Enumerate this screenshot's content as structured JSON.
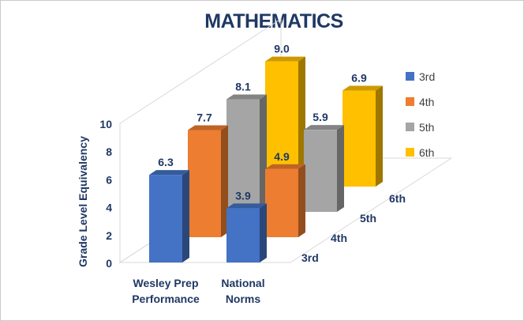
{
  "chart_data": {
    "type": "bar",
    "title": "MATHEMATICS",
    "ylabel": "Grade Level Equivalency",
    "xlabel": "",
    "ylim": [
      0,
      10
    ],
    "yticks": [
      0,
      2,
      4,
      6,
      8,
      10
    ],
    "categories": [
      "Wesley Prep Performance",
      "National Norms"
    ],
    "category_lines": [
      [
        "Wesley Prep",
        "Performance"
      ],
      [
        "National",
        "Norms"
      ]
    ],
    "depth_labels": [
      "3rd",
      "4th",
      "5th",
      "6th"
    ],
    "series": [
      {
        "name": "3rd",
        "values": [
          6.3,
          3.9
        ],
        "color": "#4472c4"
      },
      {
        "name": "4th",
        "values": [
          7.7,
          4.9
        ],
        "color": "#ed7d31"
      },
      {
        "name": "5th",
        "values": [
          8.1,
          5.9
        ],
        "color": "#a5a5a5"
      },
      {
        "name": "6th",
        "values": [
          9.0,
          6.9
        ],
        "color": "#ffc000"
      }
    ],
    "data_labels": [
      [
        "6.3",
        "3.9"
      ],
      [
        "7.7",
        "4.9"
      ],
      [
        "8.1",
        "5.9"
      ],
      [
        "9.0",
        "6.9"
      ]
    ],
    "legend_position": "right",
    "style": "3d-column",
    "grid": false
  }
}
